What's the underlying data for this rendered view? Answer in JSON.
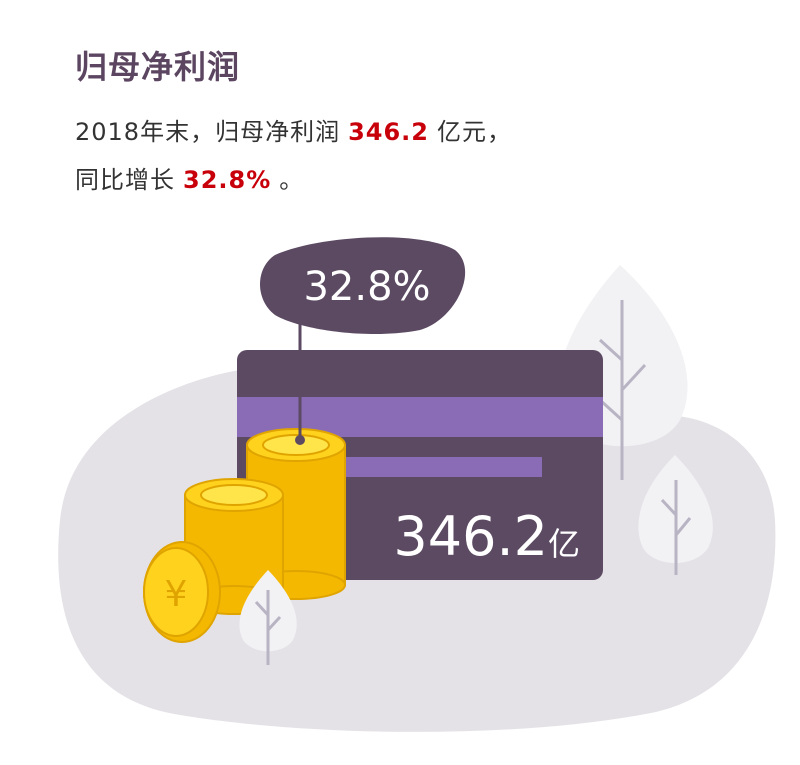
{
  "header": {
    "title": "归母净利润"
  },
  "summary": {
    "line1": {
      "before": "2018年末，归母净利润",
      "figure": "346.2",
      "after": "亿元，"
    },
    "line2": {
      "before": "同比增长",
      "figure": "32.8%",
      "after": "。"
    }
  },
  "illustration": {
    "bubble": "32.8%",
    "card": {
      "amount": "346.2",
      "unit": "亿"
    }
  }
}
